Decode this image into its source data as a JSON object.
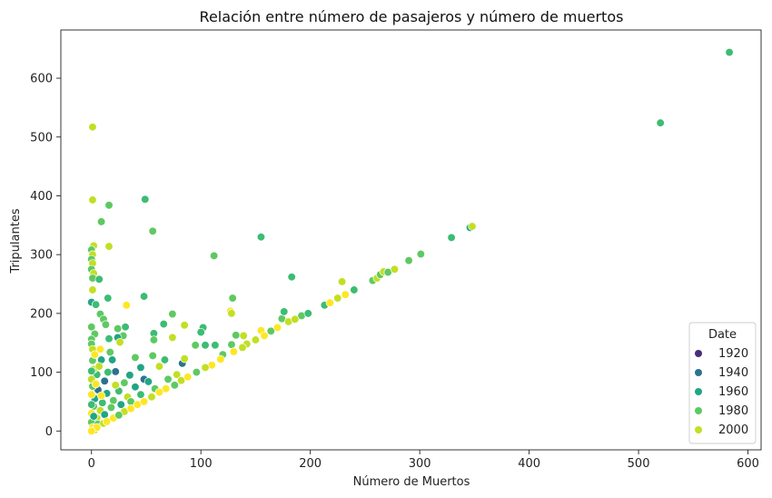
{
  "chart_data": {
    "type": "scatter",
    "title": "Relación entre número de pasajeros y número de muertos",
    "xlabel": "Número de Muertos",
    "ylabel": "Tripulantes",
    "xlim": [
      -28,
      612
    ],
    "ylim": [
      -32,
      682
    ],
    "xticks": [
      0,
      100,
      200,
      300,
      400,
      500,
      600
    ],
    "yticks": [
      0,
      100,
      200,
      300,
      400,
      500,
      600
    ],
    "grid": false,
    "legend": {
      "title": "Date",
      "placement": "bottom-right",
      "entries": [
        {
          "label": "1920",
          "color": "#472d7b"
        },
        {
          "label": "1940",
          "color": "#2c728e"
        },
        {
          "label": "1960",
          "color": "#21a585"
        },
        {
          "label": "1980",
          "color": "#5ec962"
        },
        {
          "label": "2000",
          "color": "#c2df23"
        }
      ]
    },
    "points": [
      {
        "x": 583,
        "y": 644,
        "color": "#3dbc74"
      },
      {
        "x": 520,
        "y": 524,
        "color": "#3dbc74"
      },
      {
        "x": 1,
        "y": 517,
        "color": "#c2df23"
      },
      {
        "x": 49,
        "y": 394,
        "color": "#3dbc74"
      },
      {
        "x": 1,
        "y": 393,
        "color": "#c2df23"
      },
      {
        "x": 16,
        "y": 384,
        "color": "#5ec962"
      },
      {
        "x": 9,
        "y": 356,
        "color": "#5ec962"
      },
      {
        "x": 56,
        "y": 340,
        "color": "#5ec962"
      },
      {
        "x": 155,
        "y": 330,
        "color": "#3dbc74"
      },
      {
        "x": 16,
        "y": 314,
        "color": "#c2df23"
      },
      {
        "x": 2,
        "y": 315,
        "color": "#c2df23"
      },
      {
        "x": 0,
        "y": 308,
        "color": "#5ec962"
      },
      {
        "x": 1,
        "y": 300,
        "color": "#c2df23"
      },
      {
        "x": 112,
        "y": 298,
        "color": "#5ec962"
      },
      {
        "x": 0,
        "y": 292,
        "color": "#5ec962"
      },
      {
        "x": 1,
        "y": 285,
        "color": "#c2df23"
      },
      {
        "x": 0,
        "y": 275,
        "color": "#5ec962"
      },
      {
        "x": 2,
        "y": 268,
        "color": "#c2df23"
      },
      {
        "x": 183,
        "y": 262,
        "color": "#3dbc74"
      },
      {
        "x": 1,
        "y": 260,
        "color": "#5ec962"
      },
      {
        "x": 7,
        "y": 258,
        "color": "#3dbc74"
      },
      {
        "x": 1,
        "y": 240,
        "color": "#c2df23"
      },
      {
        "x": 48,
        "y": 229,
        "color": "#3dbc74"
      },
      {
        "x": 15,
        "y": 226,
        "color": "#3dbc74"
      },
      {
        "x": 0,
        "y": 219,
        "color": "#21a585"
      },
      {
        "x": 4,
        "y": 215,
        "color": "#3dbc74"
      },
      {
        "x": 32,
        "y": 214,
        "color": "#fde725"
      },
      {
        "x": 129,
        "y": 226,
        "color": "#5ec962"
      },
      {
        "x": 127,
        "y": 204,
        "color": "#fde725"
      },
      {
        "x": 128,
        "y": 200,
        "color": "#c2df23"
      },
      {
        "x": 74,
        "y": 199,
        "color": "#5ec962"
      },
      {
        "x": 8,
        "y": 199,
        "color": "#5ec962"
      },
      {
        "x": 11,
        "y": 190,
        "color": "#5ec962"
      },
      {
        "x": 66,
        "y": 182,
        "color": "#3dbc74"
      },
      {
        "x": 85,
        "y": 180,
        "color": "#c2df23"
      },
      {
        "x": 13,
        "y": 181,
        "color": "#5ec962"
      },
      {
        "x": 31,
        "y": 177,
        "color": "#3dbc74"
      },
      {
        "x": 0,
        "y": 177,
        "color": "#5ec962"
      },
      {
        "x": 24,
        "y": 174,
        "color": "#5ec962"
      },
      {
        "x": 102,
        "y": 176,
        "color": "#3dbc74"
      },
      {
        "x": 57,
        "y": 166,
        "color": "#3dbc74"
      },
      {
        "x": 174,
        "y": 191,
        "color": "#5ec962"
      },
      {
        "x": 176,
        "y": 203,
        "color": "#3dbc74"
      },
      {
        "x": 3,
        "y": 165,
        "color": "#5ec962"
      },
      {
        "x": 29,
        "y": 162,
        "color": "#5ec962"
      },
      {
        "x": 24,
        "y": 159,
        "color": "#21a585"
      },
      {
        "x": 74,
        "y": 159,
        "color": "#c2df23"
      },
      {
        "x": 0,
        "y": 156,
        "color": "#5ec962"
      },
      {
        "x": 16,
        "y": 157,
        "color": "#3dbc74"
      },
      {
        "x": 26,
        "y": 151,
        "color": "#c2df23"
      },
      {
        "x": 57,
        "y": 155,
        "color": "#5ec962"
      },
      {
        "x": 132,
        "y": 163,
        "color": "#5ec962"
      },
      {
        "x": 139,
        "y": 162,
        "color": "#c2df23"
      },
      {
        "x": 100,
        "y": 168,
        "color": "#3dbc74"
      },
      {
        "x": 155,
        "y": 171,
        "color": "#fde725"
      },
      {
        "x": 0,
        "y": 148,
        "color": "#5ec962"
      },
      {
        "x": 1,
        "y": 139,
        "color": "#c2df23"
      },
      {
        "x": 8,
        "y": 139,
        "color": "#fde725"
      },
      {
        "x": 104,
        "y": 146,
        "color": "#3dbc74"
      },
      {
        "x": 113,
        "y": 146,
        "color": "#3dbc74"
      },
      {
        "x": 128,
        "y": 147,
        "color": "#5ec962"
      },
      {
        "x": 83,
        "y": 115,
        "color": "#2c728e"
      },
      {
        "x": 19,
        "y": 121,
        "color": "#21a585"
      },
      {
        "x": 9,
        "y": 121,
        "color": "#21a585"
      },
      {
        "x": 22,
        "y": 101,
        "color": "#2c728e"
      },
      {
        "x": 45,
        "y": 108,
        "color": "#21a585"
      },
      {
        "x": 67,
        "y": 121,
        "color": "#3dbc74"
      },
      {
        "x": 40,
        "y": 125,
        "color": "#5ec962"
      },
      {
        "x": 56,
        "y": 128,
        "color": "#5ec962"
      },
      {
        "x": 95,
        "y": 146,
        "color": "#5ec962"
      },
      {
        "x": 62,
        "y": 110,
        "color": "#c2df23"
      },
      {
        "x": 85,
        "y": 123,
        "color": "#c2df23"
      },
      {
        "x": 35,
        "y": 95,
        "color": "#21a585"
      },
      {
        "x": 48,
        "y": 88,
        "color": "#2c728e"
      },
      {
        "x": 52,
        "y": 84,
        "color": "#21a585"
      },
      {
        "x": 70,
        "y": 88,
        "color": "#5ec962"
      },
      {
        "x": 78,
        "y": 96,
        "color": "#c2df23"
      },
      {
        "x": 30,
        "y": 82,
        "color": "#5ec962"
      },
      {
        "x": 12,
        "y": 85,
        "color": "#2c728e"
      },
      {
        "x": 5,
        "y": 96,
        "color": "#3dbc74"
      },
      {
        "x": 2,
        "y": 105,
        "color": "#c2df23"
      },
      {
        "x": 1,
        "y": 120,
        "color": "#5ec962"
      },
      {
        "x": 3,
        "y": 130,
        "color": "#fde725"
      },
      {
        "x": 17,
        "y": 134,
        "color": "#5ec962"
      },
      {
        "x": 40,
        "y": 75,
        "color": "#21a585"
      },
      {
        "x": 58,
        "y": 72,
        "color": "#5ec962"
      },
      {
        "x": 25,
        "y": 68,
        "color": "#3dbc74"
      },
      {
        "x": 14,
        "y": 64,
        "color": "#21a585"
      },
      {
        "x": 6,
        "y": 70,
        "color": "#2c728e"
      },
      {
        "x": 1,
        "y": 76,
        "color": "#5ec962"
      },
      {
        "x": 0,
        "y": 88,
        "color": "#c2df23"
      },
      {
        "x": 33,
        "y": 58,
        "color": "#c2df23"
      },
      {
        "x": 20,
        "y": 52,
        "color": "#5ec962"
      },
      {
        "x": 10,
        "y": 48,
        "color": "#3dbc74"
      },
      {
        "x": 3,
        "y": 55,
        "color": "#21a585"
      },
      {
        "x": 0,
        "y": 62,
        "color": "#fde725"
      },
      {
        "x": 45,
        "y": 62,
        "color": "#3dbc74"
      },
      {
        "x": 18,
        "y": 40,
        "color": "#5ec962"
      },
      {
        "x": 8,
        "y": 35,
        "color": "#c2df23"
      },
      {
        "x": 2,
        "y": 42,
        "color": "#5ec962"
      },
      {
        "x": 0,
        "y": 30,
        "color": "#fde725"
      },
      {
        "x": 5,
        "y": 22,
        "color": "#c2df23"
      },
      {
        "x": 0,
        "y": 15,
        "color": "#5ec962"
      },
      {
        "x": 1,
        "y": 6,
        "color": "#fde725"
      },
      {
        "x": 12,
        "y": 28,
        "color": "#21a585"
      },
      {
        "x": 27,
        "y": 45,
        "color": "#21a585"
      },
      {
        "x": 36,
        "y": 50,
        "color": "#5ec962"
      },
      {
        "x": 15,
        "y": 100,
        "color": "#3dbc74"
      },
      {
        "x": 7,
        "y": 110,
        "color": "#c2df23"
      },
      {
        "x": 0,
        "y": 102,
        "color": "#3dbc74"
      },
      {
        "x": 4,
        "y": 80,
        "color": "#fde725"
      },
      {
        "x": 22,
        "y": 78,
        "color": "#c2df23"
      },
      {
        "x": 0,
        "y": 45,
        "color": "#3dbc74"
      },
      {
        "x": 9,
        "y": 60,
        "color": "#fde725"
      },
      {
        "x": 2,
        "y": 25,
        "color": "#21a585"
      },
      {
        "x": 6,
        "y": 12,
        "color": "#5ec962"
      },
      {
        "x": 3,
        "y": 2,
        "color": "#c2df23"
      },
      {
        "x": 120,
        "y": 130,
        "color": "#5ec962"
      },
      {
        "x": 142,
        "y": 148,
        "color": "#c2df23"
      },
      {
        "x": 164,
        "y": 170,
        "color": "#5ec962"
      },
      {
        "x": 180,
        "y": 186,
        "color": "#c2df23"
      },
      {
        "x": 192,
        "y": 196,
        "color": "#5ec962"
      },
      {
        "x": 198,
        "y": 200,
        "color": "#3dbc74"
      },
      {
        "x": 213,
        "y": 214,
        "color": "#3dbc74"
      },
      {
        "x": 218,
        "y": 218,
        "color": "#fde725"
      },
      {
        "x": 225,
        "y": 226,
        "color": "#c2df23"
      },
      {
        "x": 232,
        "y": 232,
        "color": "#fde725"
      },
      {
        "x": 240,
        "y": 240,
        "color": "#3dbc74"
      },
      {
        "x": 229,
        "y": 254,
        "color": "#c2df23"
      },
      {
        "x": 257,
        "y": 256,
        "color": "#5ec962"
      },
      {
        "x": 261,
        "y": 260,
        "color": "#c2df23"
      },
      {
        "x": 264,
        "y": 266,
        "color": "#5ec962"
      },
      {
        "x": 267,
        "y": 271,
        "color": "#c2df23"
      },
      {
        "x": 271,
        "y": 270,
        "color": "#5ec962"
      },
      {
        "x": 277,
        "y": 275,
        "color": "#c2df23"
      },
      {
        "x": 290,
        "y": 290,
        "color": "#5ec962"
      },
      {
        "x": 301,
        "y": 301,
        "color": "#5ec962"
      },
      {
        "x": 329,
        "y": 329,
        "color": "#3dbc74"
      },
      {
        "x": 346,
        "y": 346,
        "color": "#21a585"
      },
      {
        "x": 348,
        "y": 348,
        "color": "#c2df23"
      },
      {
        "x": 110,
        "y": 112,
        "color": "#fde725"
      },
      {
        "x": 96,
        "y": 100,
        "color": "#5ec962"
      },
      {
        "x": 82,
        "y": 86,
        "color": "#c2df23"
      },
      {
        "x": 68,
        "y": 72,
        "color": "#fde725"
      },
      {
        "x": 55,
        "y": 58,
        "color": "#c2df23"
      },
      {
        "x": 42,
        "y": 45,
        "color": "#fde725"
      },
      {
        "x": 30,
        "y": 33,
        "color": "#c2df23"
      },
      {
        "x": 20,
        "y": 22,
        "color": "#fde725"
      },
      {
        "x": 11,
        "y": 13,
        "color": "#c2df23"
      },
      {
        "x": 5,
        "y": 6,
        "color": "#fde725"
      },
      {
        "x": 130,
        "y": 135,
        "color": "#fde725"
      },
      {
        "x": 150,
        "y": 155,
        "color": "#c2df23"
      },
      {
        "x": 170,
        "y": 176,
        "color": "#fde725"
      },
      {
        "x": 88,
        "y": 92,
        "color": "#fde725"
      },
      {
        "x": 62,
        "y": 66,
        "color": "#fde725"
      },
      {
        "x": 104,
        "y": 108,
        "color": "#c2df23"
      },
      {
        "x": 118,
        "y": 122,
        "color": "#fde725"
      },
      {
        "x": 138,
        "y": 142,
        "color": "#c2df23"
      },
      {
        "x": 158,
        "y": 162,
        "color": "#fde725"
      },
      {
        "x": 186,
        "y": 190,
        "color": "#c2df23"
      },
      {
        "x": 76,
        "y": 78,
        "color": "#5ec962"
      },
      {
        "x": 48,
        "y": 50,
        "color": "#fde725"
      },
      {
        "x": 36,
        "y": 38,
        "color": "#fde725"
      },
      {
        "x": 25,
        "y": 27,
        "color": "#5ec962"
      },
      {
        "x": 14,
        "y": 16,
        "color": "#fde725"
      },
      {
        "x": 0,
        "y": 0,
        "color": "#fde725"
      }
    ]
  }
}
